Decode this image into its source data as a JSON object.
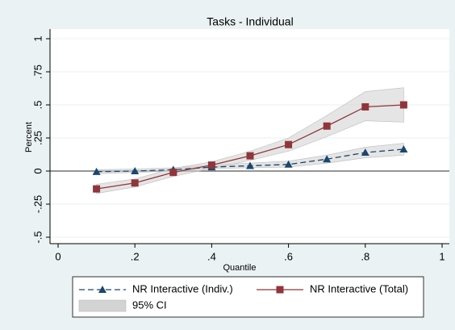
{
  "chart_data": {
    "type": "line",
    "title": "Tasks - Individual",
    "x_label": "Quantile",
    "y_label": "Percent",
    "x": [
      0.1,
      0.2,
      0.3,
      0.4,
      0.5,
      0.6,
      0.7,
      0.8,
      0.9
    ],
    "series": [
      {
        "name": "NR Interactive (Indiv.)",
        "color": "#1a476f",
        "marker": "triangle",
        "dash": true,
        "values": [
          -0.005,
          0.0,
          0.01,
          0.03,
          0.04,
          0.05,
          0.09,
          0.14,
          0.165
        ]
      },
      {
        "name": "NR Interactive (Total)",
        "color": "#90353b",
        "marker": "square",
        "dash": false,
        "values": [
          -0.135,
          -0.09,
          -0.01,
          0.045,
          0.115,
          0.2,
          0.34,
          0.485,
          0.5
        ]
      }
    ],
    "ci": {
      "name": "95% CI",
      "color": "#d3d3d3",
      "bands": [
        {
          "lower": [
            -0.02,
            -0.01,
            0.0,
            0.02,
            0.025,
            0.03,
            0.06,
            0.1,
            0.12
          ],
          "upper": [
            0.01,
            0.015,
            0.025,
            0.045,
            0.06,
            0.075,
            0.12,
            0.18,
            0.21
          ]
        },
        {
          "lower": [
            -0.17,
            -0.12,
            -0.04,
            0.02,
            0.08,
            0.15,
            0.26,
            0.38,
            0.37
          ],
          "upper": [
            -0.1,
            -0.06,
            0.02,
            0.07,
            0.15,
            0.25,
            0.42,
            0.6,
            0.63
          ]
        }
      ]
    },
    "xlim": [
      0,
      1
    ],
    "xticks": [
      0,
      {
        "value": 0.2,
        "label": ".2"
      },
      {
        "value": 0.4,
        "label": ".4"
      },
      {
        "value": 0.6,
        "label": ".6"
      },
      {
        "value": 0.8,
        "label": ".8"
      },
      1
    ],
    "ylim": [
      -0.5,
      1
    ],
    "yticks": [
      {
        "value": -0.5,
        "label": "-.5"
      },
      {
        "value": -0.25,
        "label": "-.25"
      },
      0,
      {
        "value": 0.25,
        "label": ".25"
      },
      {
        "value": 0.5,
        "label": ".5"
      },
      {
        "value": 0.75,
        "label": ".75"
      },
      1
    ],
    "grid": true,
    "legend": "bottom"
  }
}
